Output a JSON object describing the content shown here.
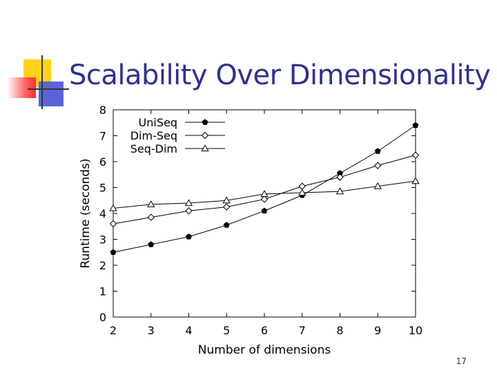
{
  "slide": {
    "title": "Scalability Over Dimensionality",
    "page_number": "17",
    "colors": {
      "title": "#2e3192",
      "deco_yellow": "#ffd21a",
      "deco_red": "#ff2b2b",
      "deco_blue": "#5a64d8"
    }
  },
  "chart_data": {
    "type": "line",
    "title": "",
    "xlabel": "Number of dimensions",
    "ylabel": "Runtime (seconds)",
    "xlim": [
      2,
      10
    ],
    "ylim": [
      0,
      8
    ],
    "x": [
      2,
      3,
      4,
      5,
      6,
      7,
      8,
      9,
      10
    ],
    "xticks": [
      "2",
      "3",
      "4",
      "5",
      "6",
      "7",
      "8",
      "9",
      "10"
    ],
    "yticks": [
      "0",
      "1",
      "2",
      "3",
      "4",
      "5",
      "6",
      "7",
      "8"
    ],
    "grid": false,
    "legend_position": "top-left",
    "series": [
      {
        "name": "UniSeq",
        "marker": "filled-pentagon",
        "values": [
          2.5,
          2.8,
          3.1,
          3.55,
          4.1,
          4.7,
          5.55,
          6.4,
          7.4
        ]
      },
      {
        "name": "Dim-Seq",
        "marker": "open-diamond",
        "values": [
          3.6,
          3.85,
          4.1,
          4.25,
          4.55,
          5.05,
          5.4,
          5.85,
          6.25
        ]
      },
      {
        "name": "Seq-Dim",
        "marker": "open-triangle",
        "values": [
          4.2,
          4.35,
          4.4,
          4.5,
          4.75,
          4.8,
          4.85,
          5.05,
          5.25
        ]
      }
    ]
  }
}
